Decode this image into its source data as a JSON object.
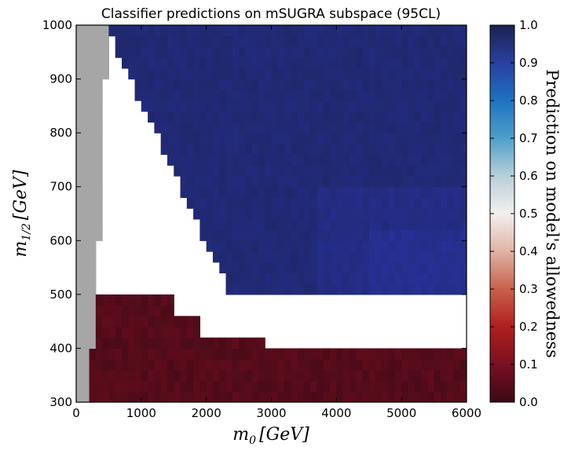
{
  "chart_data": {
    "type": "heatmap",
    "title": "Classifier predictions on mSUGRA subspace (95CL)",
    "xlabel": "m_0 [GeV]",
    "ylabel": "m_{1/2} [GeV]",
    "xlim": [
      0,
      6000
    ],
    "ylim": [
      300,
      1000
    ],
    "x_ticks": [
      "0",
      "1000",
      "2000",
      "3000",
      "4000",
      "5000",
      "6000"
    ],
    "y_ticks": [
      "300",
      "400",
      "500",
      "600",
      "700",
      "800",
      "900",
      "1000"
    ],
    "colorbar": {
      "label": "Prediction on model's allowedness",
      "range": [
        0.0,
        1.0
      ],
      "ticks": [
        "0.0",
        "0.1",
        "0.2",
        "0.3",
        "0.4",
        "0.5",
        "0.6",
        "0.7",
        "0.8",
        "0.9",
        "1.0"
      ],
      "colormap": "red-white-blue (twilight/RdBu-like)"
    },
    "regions": [
      {
        "name": "excluded (no prediction, grey)",
        "color": "#a6a6a6",
        "m0_range": [
          0,
          400
        ],
        "m12_boundary_note": "left band up to ~300-500 GeV"
      },
      {
        "name": "allowed (prediction ~0.95)",
        "value": 0.95,
        "m0_range": [
          500,
          6000
        ],
        "m12_range": [
          500,
          1000
        ]
      },
      {
        "name": "disallowed (prediction ~0.05)",
        "value": 0.05,
        "m0_range": [
          200,
          6000
        ],
        "m12_range": [
          300,
          580
        ]
      },
      {
        "name": "unsampled (white)",
        "value": null,
        "note": "diagonal gap and band 400-500 GeV for m0 > 3700"
      }
    ],
    "grid": false
  },
  "colors": {
    "grey": "#a6a6a6",
    "dark_blue": "#1b2355",
    "mid_blue": "#2a3c8e",
    "dark_red": "#4a0d1c",
    "mid_red": "#8b1128"
  },
  "text": {
    "title": "Classifier predictions on mSUGRA subspace (95CL)",
    "xlabel_main": "m",
    "xlabel_sub": "0",
    "xlabel_unit": "[GeV]",
    "ylabel_main": "m",
    "ylabel_sub": "1/2",
    "ylabel_unit": "[GeV]",
    "cb_label": "Prediction on model's allowedness"
  }
}
